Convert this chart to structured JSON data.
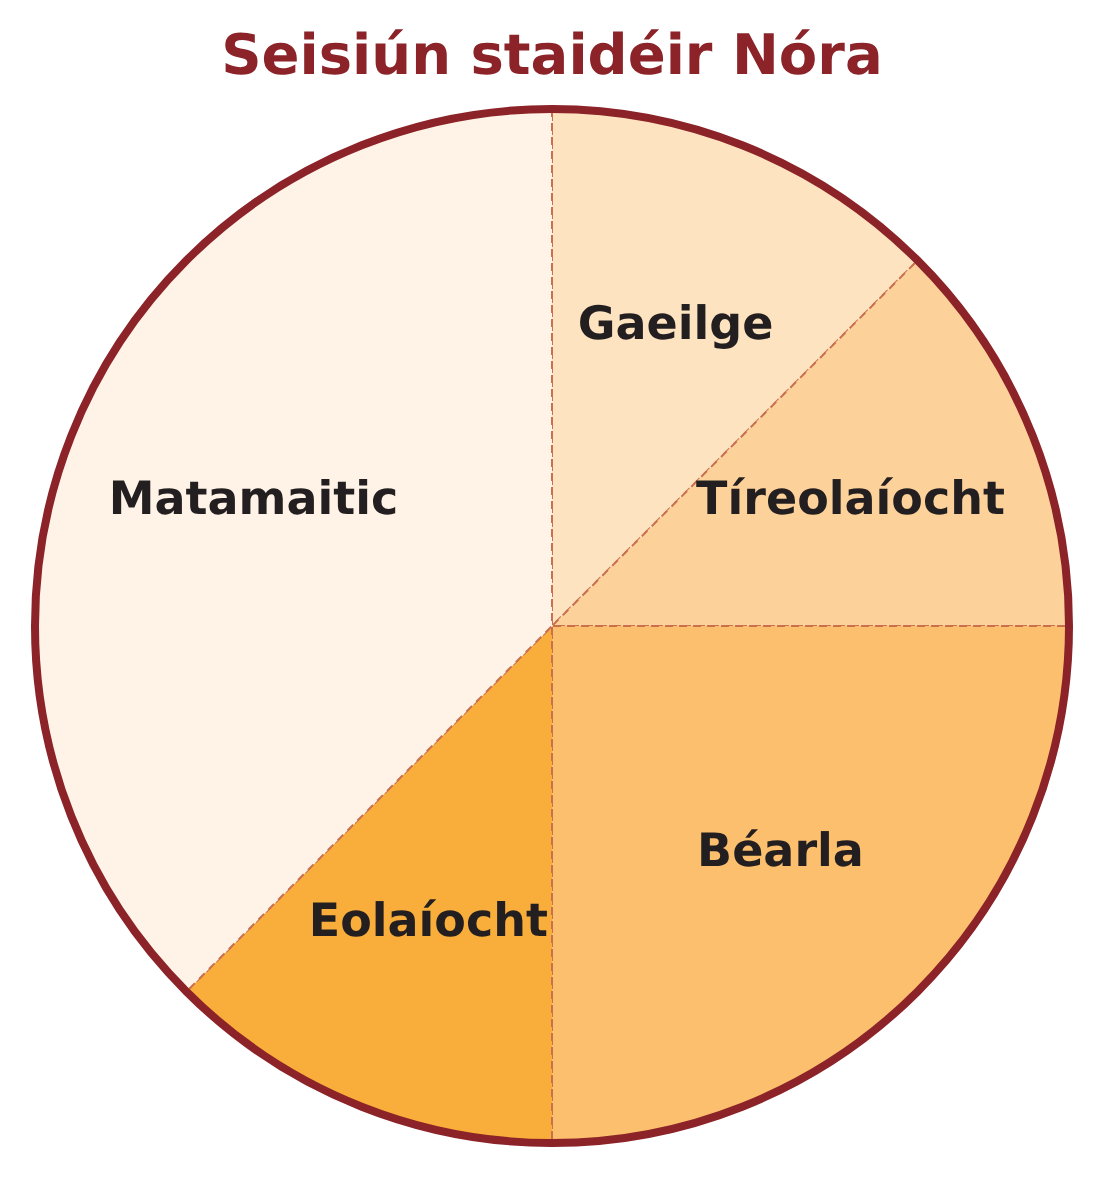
{
  "chart_data": {
    "type": "pie",
    "title": "Seisiún staidéir Nóra",
    "categories": [
      "Gaeilge",
      "Tíreolaíocht",
      "Béarla",
      "Eolaíocht",
      "Matamaitic"
    ],
    "values": [
      12.5,
      12.5,
      25,
      12.5,
      37.5
    ],
    "colors": [
      "#fde3c0",
      "#fdd29a",
      "#fbbf6e",
      "#f9ae3c",
      "#fef3e6"
    ],
    "legend": false
  }
}
